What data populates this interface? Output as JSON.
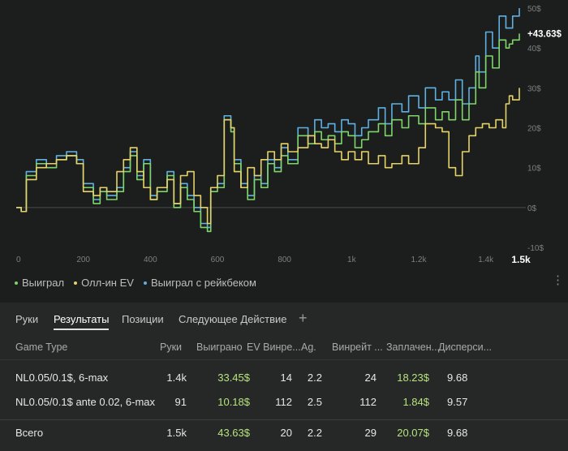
{
  "chart_data": {
    "type": "line",
    "xlabel": "",
    "ylabel": "",
    "xlim": [
      0,
      1500
    ],
    "ylim": [
      -10,
      50
    ],
    "x_ticks": [
      {
        "v": 0,
        "label": "0"
      },
      {
        "v": 200,
        "label": "200"
      },
      {
        "v": 400,
        "label": "400"
      },
      {
        "v": 600,
        "label": "600"
      },
      {
        "v": 800,
        "label": "800"
      },
      {
        "v": 1000,
        "label": "1k"
      },
      {
        "v": 1200,
        "label": "1.2k"
      },
      {
        "v": 1400,
        "label": "1.4k"
      },
      {
        "v": 1500,
        "label": "1.5k"
      }
    ],
    "y_ticks": [
      {
        "v": 50,
        "label": "50$"
      },
      {
        "v": 40,
        "label": "40$"
      },
      {
        "v": 30,
        "label": "30$"
      },
      {
        "v": 20,
        "label": "20$"
      },
      {
        "v": 10,
        "label": "10$"
      },
      {
        "v": 0,
        "label": "0$"
      },
      {
        "v": -10,
        "label": "-10$"
      }
    ],
    "end_label": "+43.63$",
    "series": [
      {
        "name": "Выиграл с рейкбеком",
        "color": "#5fb0e3",
        "points": [
          [
            0,
            0
          ],
          [
            15,
            -1
          ],
          [
            30,
            9
          ],
          [
            60,
            12
          ],
          [
            90,
            11
          ],
          [
            120,
            13
          ],
          [
            150,
            14
          ],
          [
            180,
            12
          ],
          [
            200,
            6
          ],
          [
            230,
            2
          ],
          [
            250,
            5
          ],
          [
            270,
            3
          ],
          [
            300,
            5
          ],
          [
            320,
            10
          ],
          [
            340,
            14
          ],
          [
            360,
            8
          ],
          [
            380,
            12
          ],
          [
            400,
            3
          ],
          [
            420,
            5
          ],
          [
            450,
            9
          ],
          [
            470,
            1
          ],
          [
            490,
            6
          ],
          [
            510,
            3
          ],
          [
            530,
            0
          ],
          [
            550,
            -4
          ],
          [
            570,
            -5
          ],
          [
            580,
            5
          ],
          [
            600,
            6
          ],
          [
            620,
            23
          ],
          [
            640,
            20
          ],
          [
            650,
            12
          ],
          [
            670,
            6
          ],
          [
            690,
            3
          ],
          [
            710,
            8
          ],
          [
            730,
            6
          ],
          [
            750,
            12
          ],
          [
            770,
            10
          ],
          [
            790,
            15
          ],
          [
            810,
            12
          ],
          [
            840,
            20
          ],
          [
            870,
            18
          ],
          [
            890,
            22
          ],
          [
            910,
            20
          ],
          [
            930,
            21
          ],
          [
            950,
            19
          ],
          [
            970,
            22
          ],
          [
            990,
            21
          ],
          [
            1010,
            18
          ],
          [
            1030,
            20
          ],
          [
            1050,
            22
          ],
          [
            1080,
            25
          ],
          [
            1100,
            21
          ],
          [
            1120,
            26
          ],
          [
            1150,
            24
          ],
          [
            1170,
            28
          ],
          [
            1200,
            25
          ],
          [
            1220,
            30
          ],
          [
            1250,
            27
          ],
          [
            1270,
            29
          ],
          [
            1290,
            27
          ],
          [
            1310,
            32
          ],
          [
            1330,
            26
          ],
          [
            1350,
            30
          ],
          [
            1370,
            38
          ],
          [
            1380,
            34
          ],
          [
            1400,
            44
          ],
          [
            1420,
            40
          ],
          [
            1440,
            48
          ],
          [
            1460,
            45
          ],
          [
            1470,
            45
          ],
          [
            1480,
            48
          ],
          [
            1500,
            50
          ]
        ]
      },
      {
        "name": "Выиграл",
        "color": "#7fd46a",
        "points": [
          [
            0,
            0
          ],
          [
            15,
            -1
          ],
          [
            30,
            8
          ],
          [
            60,
            11
          ],
          [
            90,
            10
          ],
          [
            120,
            12
          ],
          [
            150,
            13
          ],
          [
            180,
            11
          ],
          [
            200,
            5
          ],
          [
            230,
            1
          ],
          [
            250,
            4
          ],
          [
            270,
            2
          ],
          [
            300,
            4
          ],
          [
            320,
            9
          ],
          [
            340,
            13
          ],
          [
            360,
            7
          ],
          [
            380,
            11
          ],
          [
            400,
            2
          ],
          [
            420,
            4
          ],
          [
            450,
            8
          ],
          [
            470,
            0
          ],
          [
            490,
            5
          ],
          [
            510,
            2
          ],
          [
            530,
            -1
          ],
          [
            550,
            -5
          ],
          [
            570,
            -6
          ],
          [
            580,
            4
          ],
          [
            600,
            5
          ],
          [
            620,
            22
          ],
          [
            640,
            19
          ],
          [
            650,
            11
          ],
          [
            670,
            5
          ],
          [
            690,
            2
          ],
          [
            710,
            7
          ],
          [
            730,
            5
          ],
          [
            750,
            11
          ],
          [
            770,
            9
          ],
          [
            790,
            13
          ],
          [
            810,
            11
          ],
          [
            840,
            18
          ],
          [
            870,
            16
          ],
          [
            890,
            19
          ],
          [
            910,
            17
          ],
          [
            930,
            18
          ],
          [
            950,
            16
          ],
          [
            970,
            19
          ],
          [
            990,
            18
          ],
          [
            1010,
            15
          ],
          [
            1030,
            17
          ],
          [
            1050,
            19
          ],
          [
            1080,
            21
          ],
          [
            1100,
            18
          ],
          [
            1120,
            22
          ],
          [
            1150,
            20
          ],
          [
            1170,
            23
          ],
          [
            1200,
            21
          ],
          [
            1220,
            25
          ],
          [
            1250,
            22
          ],
          [
            1270,
            24
          ],
          [
            1290,
            22
          ],
          [
            1310,
            27
          ],
          [
            1330,
            22
          ],
          [
            1350,
            26
          ],
          [
            1370,
            34
          ],
          [
            1380,
            30
          ],
          [
            1400,
            38
          ],
          [
            1420,
            35
          ],
          [
            1440,
            42
          ],
          [
            1460,
            40
          ],
          [
            1470,
            41
          ],
          [
            1480,
            42
          ],
          [
            1500,
            43.63
          ]
        ]
      },
      {
        "name": "Олл-ин EV",
        "color": "#e5d36a",
        "points": [
          [
            0,
            0
          ],
          [
            15,
            -1
          ],
          [
            30,
            7
          ],
          [
            60,
            10
          ],
          [
            90,
            11
          ],
          [
            120,
            12
          ],
          [
            150,
            13
          ],
          [
            180,
            11
          ],
          [
            200,
            4
          ],
          [
            230,
            3
          ],
          [
            250,
            5
          ],
          [
            270,
            4
          ],
          [
            300,
            9
          ],
          [
            320,
            12
          ],
          [
            340,
            15
          ],
          [
            360,
            9
          ],
          [
            380,
            5
          ],
          [
            400,
            2
          ],
          [
            420,
            5
          ],
          [
            450,
            7
          ],
          [
            470,
            1
          ],
          [
            490,
            8
          ],
          [
            510,
            9
          ],
          [
            530,
            3
          ],
          [
            550,
            0
          ],
          [
            570,
            -4
          ],
          [
            580,
            5
          ],
          [
            600,
            8
          ],
          [
            620,
            22
          ],
          [
            640,
            20
          ],
          [
            650,
            9
          ],
          [
            670,
            5
          ],
          [
            690,
            10
          ],
          [
            710,
            8
          ],
          [
            730,
            12
          ],
          [
            750,
            14
          ],
          [
            770,
            12
          ],
          [
            790,
            16
          ],
          [
            810,
            14
          ],
          [
            840,
            15
          ],
          [
            870,
            18
          ],
          [
            890,
            16
          ],
          [
            910,
            15
          ],
          [
            930,
            17
          ],
          [
            950,
            14
          ],
          [
            970,
            12
          ],
          [
            990,
            14
          ],
          [
            1010,
            12
          ],
          [
            1030,
            14
          ],
          [
            1050,
            11
          ],
          [
            1080,
            13
          ],
          [
            1100,
            10
          ],
          [
            1120,
            11
          ],
          [
            1150,
            13
          ],
          [
            1170,
            11
          ],
          [
            1200,
            15
          ],
          [
            1220,
            21
          ],
          [
            1250,
            20
          ],
          [
            1270,
            19
          ],
          [
            1290,
            10
          ],
          [
            1310,
            8
          ],
          [
            1330,
            14
          ],
          [
            1350,
            18
          ],
          [
            1370,
            20
          ],
          [
            1390,
            21
          ],
          [
            1410,
            20
          ],
          [
            1430,
            22
          ],
          [
            1450,
            20
          ],
          [
            1460,
            26
          ],
          [
            1470,
            28
          ],
          [
            1480,
            27
          ],
          [
            1500,
            30
          ]
        ]
      }
    ]
  },
  "legend": [
    {
      "label": "Выиграл",
      "color": "#7fd46a"
    },
    {
      "label": "Олл-ин EV",
      "color": "#e5d36a"
    },
    {
      "label": "Выиграл с рейкбеком",
      "color": "#5fb0e3"
    }
  ],
  "menu_icon": "kebab-vertical-icon",
  "tabs": [
    {
      "label": "Руки",
      "active": false
    },
    {
      "label": "Результаты",
      "active": true
    },
    {
      "label": "Позиции",
      "active": false
    },
    {
      "label": "Следующее Действие",
      "active": false
    }
  ],
  "add_tab_label": "+",
  "table": {
    "headers": [
      "Game Type",
      "Руки",
      "Выиграно",
      "EV Винре...",
      "Ag.",
      "Винрейт ...",
      "Заплачен...",
      "Дисперси..."
    ],
    "rows": [
      [
        "NL0.05/0.1$, 6-max",
        "1.4k",
        "33.45$",
        "14",
        "2.2",
        "24",
        "18.23$",
        "9.68"
      ],
      [
        "NL0.05/0.1$ ante 0.02, 6-max",
        "91",
        "10.18$",
        "112",
        "2.5",
        "112",
        "1.84$",
        "9.57"
      ]
    ],
    "total": [
      "Всего",
      "1.5k",
      "43.63$",
      "20",
      "2.2",
      "29",
      "20.07$",
      "9.68"
    ]
  }
}
